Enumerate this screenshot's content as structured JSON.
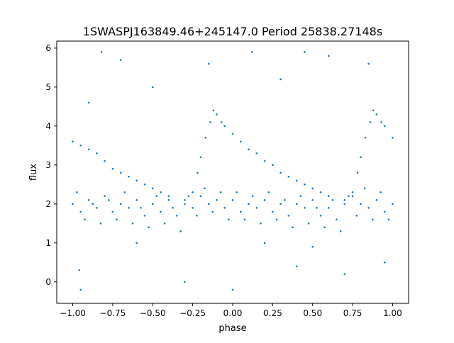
{
  "chart_data": {
    "type": "scatter",
    "title": "1SWASPJ163849.46+245147.0 Period 25838.27148s",
    "xlabel": "phase",
    "ylabel": "flux",
    "xlim": [
      -1.1,
      1.1
    ],
    "ylim": [
      -0.55,
      6.18
    ],
    "xticks": [
      -1.0,
      -0.75,
      -0.5,
      -0.25,
      0.0,
      0.25,
      0.5,
      0.75,
      1.0
    ],
    "xtick_labels": [
      "−1.00",
      "−0.75",
      "−0.50",
      "−0.25",
      "0.00",
      "0.25",
      "0.50",
      "0.75",
      "1.00"
    ],
    "yticks": [
      0,
      1,
      2,
      3,
      4,
      5,
      6
    ],
    "ytick_labels": [
      "0",
      "1",
      "2",
      "3",
      "4",
      "5",
      "6"
    ],
    "grid": false,
    "marker_color": "#1f77b4",
    "points": [
      [
        -1,
        2.0
      ],
      [
        -0.95,
        1.8
      ],
      [
        -0.9,
        2.1
      ],
      [
        -0.85,
        1.9
      ],
      [
        -0.8,
        2.2
      ],
      [
        -0.75,
        1.8
      ],
      [
        -0.7,
        2.0
      ],
      [
        -0.65,
        1.9
      ],
      [
        -0.6,
        2.1
      ],
      [
        -0.55,
        1.7
      ],
      [
        -0.5,
        2.0
      ],
      [
        -0.45,
        1.8
      ],
      [
        -0.4,
        2.1
      ],
      [
        -0.35,
        1.7
      ],
      [
        -0.3,
        2.0
      ],
      [
        -0.25,
        1.9
      ],
      [
        -0.2,
        2.2
      ],
      [
        -0.15,
        2.0
      ],
      [
        -0.1,
        2.1
      ],
      [
        -0.05,
        1.9
      ],
      [
        0,
        2.1
      ],
      [
        0.05,
        1.8
      ],
      [
        0.1,
        2.0
      ],
      [
        0.15,
        1.9
      ],
      [
        0.2,
        2.1
      ],
      [
        0.25,
        1.8
      ],
      [
        0.3,
        2.0
      ],
      [
        0.35,
        1.7
      ],
      [
        0.4,
        2.0
      ],
      [
        0.45,
        1.9
      ],
      [
        0.5,
        2.1
      ],
      [
        0.55,
        1.7
      ],
      [
        0.6,
        1.9
      ],
      [
        0.65,
        1.6
      ],
      [
        0.7,
        2.0
      ],
      [
        0.75,
        2.2
      ],
      [
        0.8,
        2.0
      ],
      [
        0.85,
        1.9
      ],
      [
        0.9,
        2.1
      ],
      [
        0.95,
        1.8
      ],
      [
        1.0,
        2.0
      ],
      [
        -0.975,
        2.3
      ],
      [
        -0.925,
        1.6
      ],
      [
        -0.875,
        2.0
      ],
      [
        -0.825,
        1.5
      ],
      [
        -0.775,
        2.1
      ],
      [
        -0.725,
        1.6
      ],
      [
        -0.675,
        2.3
      ],
      [
        -0.625,
        1.5
      ],
      [
        -0.575,
        1.9
      ],
      [
        -0.525,
        1.4
      ],
      [
        -0.475,
        2.2
      ],
      [
        -0.425,
        1.5
      ],
      [
        -0.375,
        1.9
      ],
      [
        -0.325,
        1.3
      ],
      [
        -0.275,
        2.2
      ],
      [
        -0.225,
        1.7
      ],
      [
        -0.175,
        2.4
      ],
      [
        -0.125,
        1.8
      ],
      [
        -0.075,
        2.3
      ],
      [
        -0.025,
        1.6
      ],
      [
        0.025,
        2.3
      ],
      [
        0.075,
        1.6
      ],
      [
        0.125,
        2.2
      ],
      [
        0.175,
        1.5
      ],
      [
        0.225,
        2.3
      ],
      [
        0.275,
        1.6
      ],
      [
        0.325,
        2.1
      ],
      [
        0.375,
        1.4
      ],
      [
        0.425,
        2.2
      ],
      [
        0.475,
        1.5
      ],
      [
        0.525,
        1.9
      ],
      [
        0.575,
        1.4
      ],
      [
        0.625,
        2.1
      ],
      [
        0.675,
        1.3
      ],
      [
        0.725,
        2.2
      ],
      [
        0.775,
        1.7
      ],
      [
        0.825,
        2.4
      ],
      [
        0.875,
        1.6
      ],
      [
        0.925,
        2.3
      ],
      [
        0.975,
        1.6
      ],
      [
        -1,
        3.6
      ],
      [
        -0.95,
        3.5
      ],
      [
        -0.9,
        3.4
      ],
      [
        -0.85,
        3.3
      ],
      [
        -0.8,
        3.1
      ],
      [
        -0.75,
        2.9
      ],
      [
        -0.7,
        2.8
      ],
      [
        -0.65,
        2.7
      ],
      [
        -0.6,
        2.6
      ],
      [
        -0.55,
        2.5
      ],
      [
        -0.5,
        2.4
      ],
      [
        -0.45,
        2.3
      ],
      [
        -0.4,
        2.2
      ],
      [
        -0.3,
        2.1
      ],
      [
        -0.25,
        2.3
      ],
      [
        -0.22,
        2.8
      ],
      [
        -0.2,
        3.2
      ],
      [
        -0.17,
        3.7
      ],
      [
        -0.14,
        4.1
      ],
      [
        -0.12,
        4.4
      ],
      [
        -0.1,
        4.3
      ],
      [
        -0.07,
        4.1
      ],
      [
        -0.05,
        4.0
      ],
      [
        0,
        3.8
      ],
      [
        0.05,
        3.6
      ],
      [
        0.1,
        3.4
      ],
      [
        0.15,
        3.3
      ],
      [
        0.2,
        3.1
      ],
      [
        0.25,
        3.0
      ],
      [
        0.3,
        2.8
      ],
      [
        0.35,
        2.7
      ],
      [
        0.4,
        2.6
      ],
      [
        0.45,
        2.5
      ],
      [
        0.5,
        2.4
      ],
      [
        0.55,
        2.3
      ],
      [
        0.6,
        2.2
      ],
      [
        0.7,
        2.1
      ],
      [
        0.75,
        2.3
      ],
      [
        0.78,
        2.8
      ],
      [
        0.8,
        3.2
      ],
      [
        0.83,
        3.7
      ],
      [
        0.86,
        4.1
      ],
      [
        0.88,
        4.4
      ],
      [
        0.9,
        4.3
      ],
      [
        0.93,
        4.1
      ],
      [
        0.95,
        4.0
      ],
      [
        1.0,
        3.7
      ],
      [
        -0.96,
        0.3
      ],
      [
        -0.82,
        5.9
      ],
      [
        0.12,
        5.9
      ],
      [
        0.45,
        5.9
      ],
      [
        -0.9,
        4.6
      ],
      [
        0.4,
        0.4
      ],
      [
        -0.3,
        0.0
      ],
      [
        0.6,
        5.8
      ],
      [
        0.85,
        5.6
      ],
      [
        -0.15,
        5.6
      ],
      [
        -0.7,
        5.7
      ],
      [
        0,
        -0.2
      ],
      [
        -0.95,
        -0.2
      ],
      [
        0.7,
        0.2
      ],
      [
        0.95,
        0.5
      ],
      [
        0.3,
        5.2
      ],
      [
        -0.5,
        5.0
      ],
      [
        0.2,
        1.0
      ],
      [
        -0.6,
        1.0
      ],
      [
        0.5,
        0.9
      ]
    ]
  }
}
